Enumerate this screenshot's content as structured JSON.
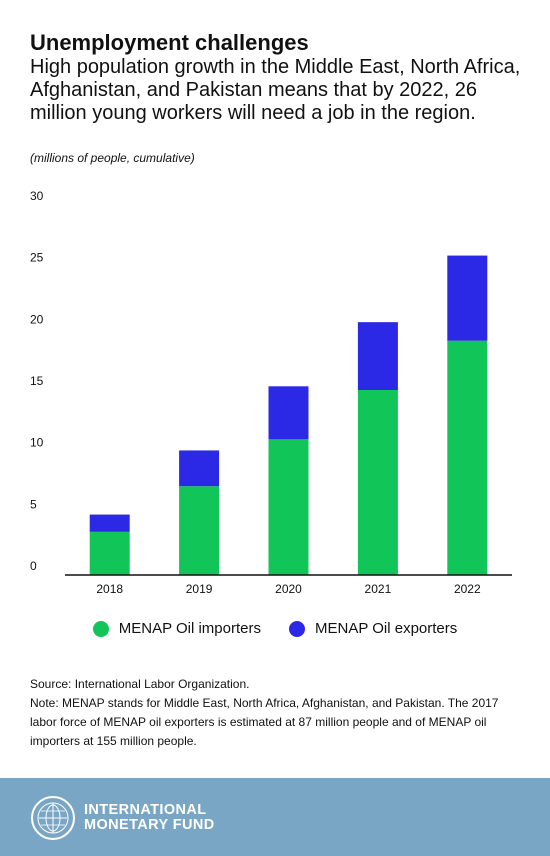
{
  "header": {
    "title": "Unemployment challenges",
    "subtitle": "High population growth in the Middle East, North Africa, Afghanistan, and Pakistan means that by 2022, 26 million young workers will need a job in the region.",
    "units": "(millions of people, cumulative)"
  },
  "chart_data": {
    "type": "bar",
    "stacked": true,
    "categories": [
      "2018",
      "2019",
      "2020",
      "2021",
      "2022"
    ],
    "series": [
      {
        "name": "MENAP Oil importers",
        "values": [
          3.5,
          7.2,
          11.0,
          15.0,
          19.0
        ],
        "color": "#11c558"
      },
      {
        "name": "MENAP Oil exporters",
        "values": [
          1.4,
          2.9,
          4.3,
          5.5,
          6.9
        ],
        "color": "#2b28e6"
      }
    ],
    "ylim": [
      0,
      30
    ],
    "yticks": [
      "0",
      "5",
      "10",
      "15",
      "20",
      "25",
      "30"
    ],
    "grid": false,
    "legend": "bottom-center"
  },
  "legend": {
    "items": [
      {
        "label": "MENAP Oil importers",
        "color": "#11c558"
      },
      {
        "label": "MENAP Oil exporters",
        "color": "#2b28e6"
      }
    ]
  },
  "notes": {
    "source": "Source: International Labor Organization.",
    "note": "Note: MENAP stands for Middle East, North Africa, Afghanistan, and Pakistan. The 2017 labor force of MENAP oil exporters is estimated at 87 million people and of MENAP oil importers at 155 million people."
  },
  "footer": {
    "line1": "INTERNATIONAL",
    "line2": "MONETARY FUND",
    "seal_icon": "imf-seal-icon",
    "background": "#7aa6c6"
  }
}
